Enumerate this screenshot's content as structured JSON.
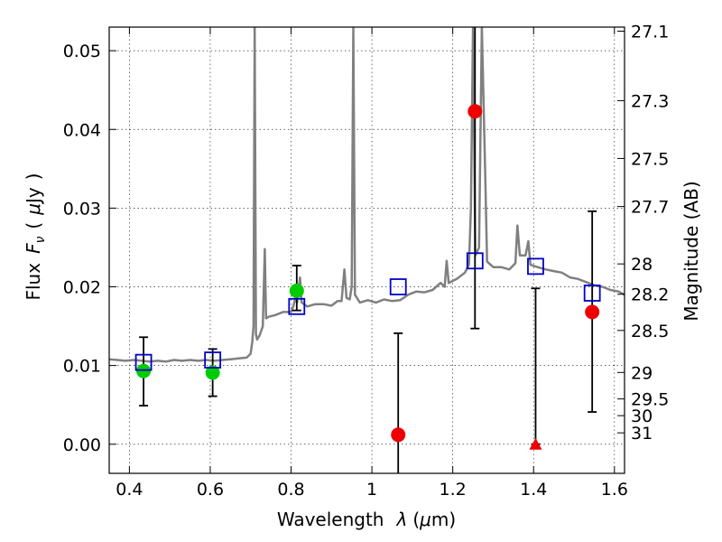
{
  "chart_data": {
    "type": "scatter",
    "title": "",
    "xlabel": {
      "prefix": "Wavelength",
      "symbol": "λ",
      "unit_open": "(",
      "unit_mu": "μ",
      "unit_rest": "m)"
    },
    "ylabel": {
      "prefix": "Flux",
      "symbol": "F",
      "subscript": "ν",
      "unit_open": "(",
      "unit_mu": "μ",
      "unit_rest": "Jy",
      "unit_close": ")"
    },
    "y2label": "Magnitude (AB)",
    "xlim": [
      0.35,
      1.625
    ],
    "ylim": [
      -0.0037,
      0.053
    ],
    "grid": true,
    "x_ticks": [
      0.4,
      0.6,
      0.8,
      1.0,
      1.2,
      1.4,
      1.6
    ],
    "x_tick_labels": [
      "0.4",
      "0.6",
      "0.8",
      "1",
      "1.2",
      "1.4",
      "1.6"
    ],
    "y_ticks": [
      0.0,
      0.01,
      0.02,
      0.03,
      0.04,
      0.05
    ],
    "y_tick_labels": [
      "0.00",
      "0.01",
      "0.02",
      "0.03",
      "0.04",
      "0.05"
    ],
    "mag_ticks": [
      {
        "label": "27.1",
        "mag": 27.1
      },
      {
        "label": "27.3",
        "mag": 27.3
      },
      {
        "label": "27.5",
        "mag": 27.5
      },
      {
        "label": "27.7",
        "mag": 27.7
      },
      {
        "label": "28",
        "mag": 28.0
      },
      {
        "label": "28.2",
        "mag": 28.2
      },
      {
        "label": "28.5",
        "mag": 28.5
      },
      {
        "label": "29",
        "mag": 29.0
      },
      {
        "label": "29.5",
        "mag": 29.5
      },
      {
        "label": "30",
        "mag": 30.0
      },
      {
        "label": "31",
        "mag": 31.0
      }
    ],
    "series": [
      {
        "marker": "circle",
        "color": "#00cc00",
        "points": [
          {
            "x": 0.435,
            "y": 0.0093,
            "yerr_low": 0.0044,
            "yerr_high": 0.0043
          },
          {
            "x": 0.606,
            "y": 0.0091,
            "yerr_low": 0.003,
            "yerr_high": 0.003
          },
          {
            "x": 0.814,
            "y": 0.0195,
            "yerr_low": 0.0025,
            "yerr_high": 0.0032
          }
        ]
      },
      {
        "marker": "circle",
        "color": "#ee0000",
        "points": [
          {
            "x": 1.065,
            "y": 0.0012,
            "yerr_low": 0.006,
            "yerr_high": 0.0129
          },
          {
            "x": 1.255,
            "y": 0.0423,
            "yerr_low": 0.0276,
            "yerr_high": 0.012
          },
          {
            "x": 1.545,
            "y": 0.0168,
            "yerr_low": 0.0127,
            "yerr_high": 0.0128
          }
        ]
      },
      {
        "marker": "triangle",
        "color": "#ee0000",
        "points": [
          {
            "x": 1.405,
            "y": 0.0,
            "yerr_low": 0.0,
            "yerr_high": 0.0198
          }
        ]
      },
      {
        "marker": "open-square",
        "color": "#0000cc",
        "points": [
          {
            "x": 0.435,
            "y": 0.0104
          },
          {
            "x": 0.606,
            "y": 0.0107
          },
          {
            "x": 0.814,
            "y": 0.0175
          },
          {
            "x": 1.065,
            "y": 0.02
          },
          {
            "x": 1.255,
            "y": 0.0233
          },
          {
            "x": 1.405,
            "y": 0.0226
          },
          {
            "x": 1.545,
            "y": 0.0192
          }
        ]
      }
    ],
    "spectrum": {
      "color": "#808080",
      "points": [
        [
          0.35,
          0.0108
        ],
        [
          0.37,
          0.0107
        ],
        [
          0.39,
          0.0106
        ],
        [
          0.41,
          0.0107
        ],
        [
          0.43,
          0.0106
        ],
        [
          0.45,
          0.0105
        ],
        [
          0.47,
          0.0106
        ],
        [
          0.49,
          0.0105
        ],
        [
          0.51,
          0.0107
        ],
        [
          0.53,
          0.0106
        ],
        [
          0.55,
          0.0107
        ],
        [
          0.57,
          0.0106
        ],
        [
          0.59,
          0.0107
        ],
        [
          0.61,
          0.0106
        ],
        [
          0.63,
          0.0107
        ],
        [
          0.65,
          0.0108
        ],
        [
          0.67,
          0.0109
        ],
        [
          0.69,
          0.011
        ],
        [
          0.7,
          0.0115
        ],
        [
          0.704,
          0.013
        ],
        [
          0.707,
          0.015
        ],
        [
          0.71,
          0.053
        ],
        [
          0.713,
          0.014
        ],
        [
          0.716,
          0.0133
        ],
        [
          0.722,
          0.0138
        ],
        [
          0.73,
          0.015
        ],
        [
          0.735,
          0.0248
        ],
        [
          0.738,
          0.016
        ],
        [
          0.745,
          0.0162
        ],
        [
          0.76,
          0.0164
        ],
        [
          0.78,
          0.0168
        ],
        [
          0.8,
          0.0168
        ],
        [
          0.806,
          0.0176
        ],
        [
          0.81,
          0.0185
        ],
        [
          0.815,
          0.018
        ],
        [
          0.822,
          0.0212
        ],
        [
          0.826,
          0.018
        ],
        [
          0.84,
          0.0175
        ],
        [
          0.86,
          0.0178
        ],
        [
          0.88,
          0.0178
        ],
        [
          0.9,
          0.0176
        ],
        [
          0.915,
          0.0182
        ],
        [
          0.925,
          0.0182
        ],
        [
          0.932,
          0.0222
        ],
        [
          0.937,
          0.0186
        ],
        [
          0.945,
          0.0184
        ],
        [
          0.95,
          0.02
        ],
        [
          0.954,
          0.053
        ],
        [
          0.958,
          0.019
        ],
        [
          0.97,
          0.018
        ],
        [
          0.99,
          0.0183
        ],
        [
          1.01,
          0.018
        ],
        [
          1.03,
          0.0184
        ],
        [
          1.05,
          0.0182
        ],
        [
          1.07,
          0.0183
        ],
        [
          1.09,
          0.019
        ],
        [
          1.11,
          0.0194
        ],
        [
          1.13,
          0.0193
        ],
        [
          1.15,
          0.0196
        ],
        [
          1.17,
          0.0205
        ],
        [
          1.18,
          0.02
        ],
        [
          1.185,
          0.0233
        ],
        [
          1.19,
          0.0205
        ],
        [
          1.21,
          0.021
        ],
        [
          1.23,
          0.0218
        ],
        [
          1.24,
          0.0228
        ],
        [
          1.245,
          0.03
        ],
        [
          1.25,
          0.053
        ],
        [
          1.256,
          0.024
        ],
        [
          1.265,
          0.025
        ],
        [
          1.272,
          0.053
        ],
        [
          1.28,
          0.035
        ],
        [
          1.285,
          0.0232
        ],
        [
          1.3,
          0.0225
        ],
        [
          1.32,
          0.0225
        ],
        [
          1.34,
          0.0222
        ],
        [
          1.355,
          0.023
        ],
        [
          1.36,
          0.0278
        ],
        [
          1.366,
          0.024
        ],
        [
          1.38,
          0.024
        ],
        [
          1.387,
          0.0258
        ],
        [
          1.392,
          0.0228
        ],
        [
          1.41,
          0.0225
        ],
        [
          1.43,
          0.0222
        ],
        [
          1.45,
          0.022
        ],
        [
          1.47,
          0.0218
        ],
        [
          1.49,
          0.0212
        ],
        [
          1.51,
          0.021
        ],
        [
          1.53,
          0.0206
        ],
        [
          1.55,
          0.0202
        ],
        [
          1.57,
          0.02
        ],
        [
          1.59,
          0.0196
        ],
        [
          1.61,
          0.0194
        ],
        [
          1.625,
          0.019
        ]
      ]
    }
  }
}
